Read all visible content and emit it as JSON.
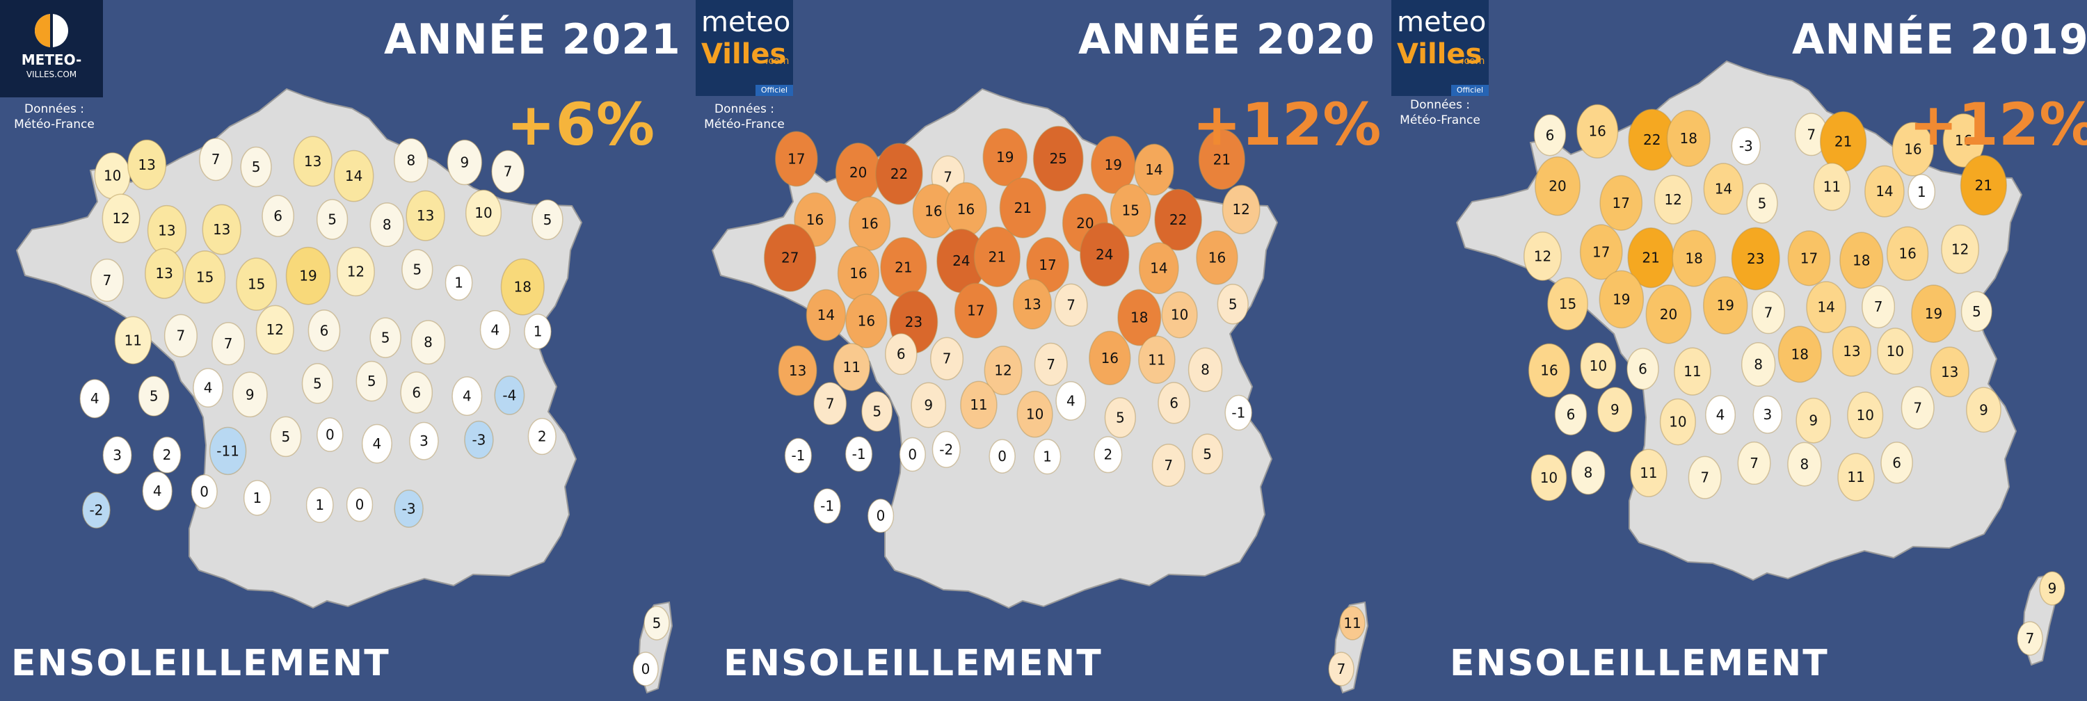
{
  "colors": {
    "background": "#3b5283",
    "land": "#dcdcdc",
    "border": "#9a9a9a",
    "change_2021": "#f5b43c",
    "change_2020": "#f08a32",
    "change_2019": "#f08a32"
  },
  "logo_1": {
    "line1": "METEO-",
    "line2": "VILLES.COM"
  },
  "logo_2": {
    "meteo": "meteo",
    "villes": "Villes",
    "com": ".com",
    "officiel": "Officiel"
  },
  "panels": [
    {
      "year": "ANNÉE 2021",
      "change": "+6%",
      "title": "ENSOLEILLEMENT",
      "source": [
        "Données :",
        "Météo-France"
      ],
      "corsica": [
        5,
        0
      ],
      "stations": [
        10,
        13,
        7,
        5,
        13,
        14,
        8,
        9,
        7,
        12,
        13,
        13,
        6,
        5,
        8,
        13,
        10,
        5,
        7,
        13,
        15,
        15,
        19,
        12,
        5,
        1,
        18,
        11,
        7,
        7,
        12,
        6,
        5,
        8,
        4,
        1,
        4,
        5,
        4,
        9,
        5,
        5,
        6,
        4,
        -4,
        3,
        2,
        -11,
        5,
        0,
        4,
        3,
        -3,
        2,
        -2,
        4,
        0,
        1,
        1,
        0,
        -3
      ]
    },
    {
      "year": "ANNÉE 2020",
      "change": "+12%",
      "title": "ENSOLEILLEMENT",
      "source": [
        "Données :",
        "Météo-France"
      ],
      "corsica": [
        11,
        7
      ],
      "stations": [
        17,
        20,
        22,
        7,
        19,
        25,
        19,
        14,
        21,
        16,
        16,
        16,
        16,
        21,
        20,
        15,
        22,
        12,
        27,
        16,
        21,
        24,
        21,
        17,
        24,
        14,
        16,
        14,
        16,
        23,
        17,
        13,
        7,
        18,
        10,
        5,
        13,
        11,
        6,
        7,
        12,
        7,
        16,
        11,
        8,
        7,
        5,
        9,
        11,
        10,
        4,
        5,
        6,
        -1,
        -1,
        -1,
        0,
        -2,
        0,
        1,
        2,
        7,
        5,
        -1,
        0
      ]
    },
    {
      "year": "ANNÉE 2019",
      "change": "+12%",
      "title": "ENSOLEILLEMENT",
      "source": [
        "Données :",
        "Météo-France"
      ],
      "corsica": [
        9,
        7
      ],
      "stations": [
        6,
        16,
        22,
        18,
        -3,
        7,
        21,
        16,
        16,
        20,
        17,
        12,
        14,
        5,
        11,
        14,
        1,
        21,
        12,
        17,
        21,
        18,
        23,
        17,
        18,
        16,
        12,
        15,
        19,
        20,
        19,
        7,
        14,
        7,
        19,
        5,
        16,
        10,
        6,
        11,
        8,
        18,
        13,
        10,
        13,
        6,
        9,
        10,
        4,
        3,
        9,
        10,
        7,
        9,
        10,
        8,
        11,
        7,
        7,
        8,
        11,
        6
      ]
    }
  ]
}
